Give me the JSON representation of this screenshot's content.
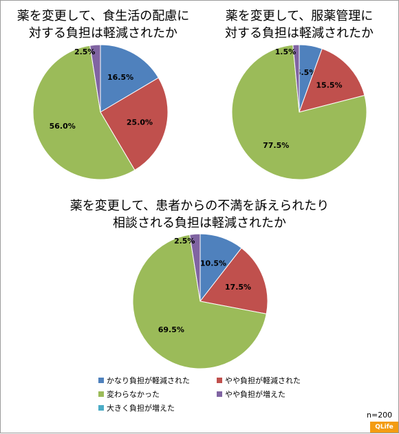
{
  "chart_data": [
    {
      "type": "pie",
      "title": [
        "薬を変更して、食生活の配慮に",
        "対する負担は軽減されたか"
      ],
      "slices": [
        {
          "category": "かなり負担が軽減された",
          "value": 16.5,
          "label": "16.5%"
        },
        {
          "category": "やや負担が軽減された",
          "value": 25.0,
          "label": "25.0%"
        },
        {
          "category": "変わらなかった",
          "value": 56.0,
          "label": "56.0%"
        },
        {
          "category": "やや負担が増えた",
          "value": 2.5,
          "label": "2.5%"
        }
      ]
    },
    {
      "type": "pie",
      "title": [
        "薬を変更して、服薬管理に",
        "対する負担は軽減されたか"
      ],
      "slices": [
        {
          "category": "かなり負担が軽減された",
          "value": 5.5,
          "label": "5.5%"
        },
        {
          "category": "やや負担が軽減された",
          "value": 15.5,
          "label": "15.5%"
        },
        {
          "category": "変わらなかった",
          "value": 77.5,
          "label": "77.5%"
        },
        {
          "category": "やや負担が増えた",
          "value": 1.5,
          "label": "1.5%"
        }
      ]
    },
    {
      "type": "pie",
      "title": [
        "薬を変更して、患者からの不満を訴えられたり",
        "相談される負担は軽減されたか"
      ],
      "slices": [
        {
          "category": "かなり負担が軽減された",
          "value": 10.5,
          "label": "10.5%"
        },
        {
          "category": "やや負担が軽減された",
          "value": 17.5,
          "label": "17.5%"
        },
        {
          "category": "変わらなかった",
          "value": 69.5,
          "label": "69.5%"
        },
        {
          "category": "やや負担が増えた",
          "value": 2.5,
          "label": "2.5%"
        }
      ]
    }
  ],
  "legend": {
    "placement": "bottom",
    "items": [
      {
        "label": "かなり負担が軽減された",
        "color": "#4f81bd"
      },
      {
        "label": "やや負担が軽減された",
        "color": "#c0504d"
      },
      {
        "label": "変わらなかった",
        "color": "#9bbb59"
      },
      {
        "label": "やや負担が増えた",
        "color": "#8064a2"
      },
      {
        "label": "大きく負担が増えた",
        "color": "#4bacc6"
      }
    ]
  },
  "sample_size": "n=200",
  "logo_text": "QLife"
}
